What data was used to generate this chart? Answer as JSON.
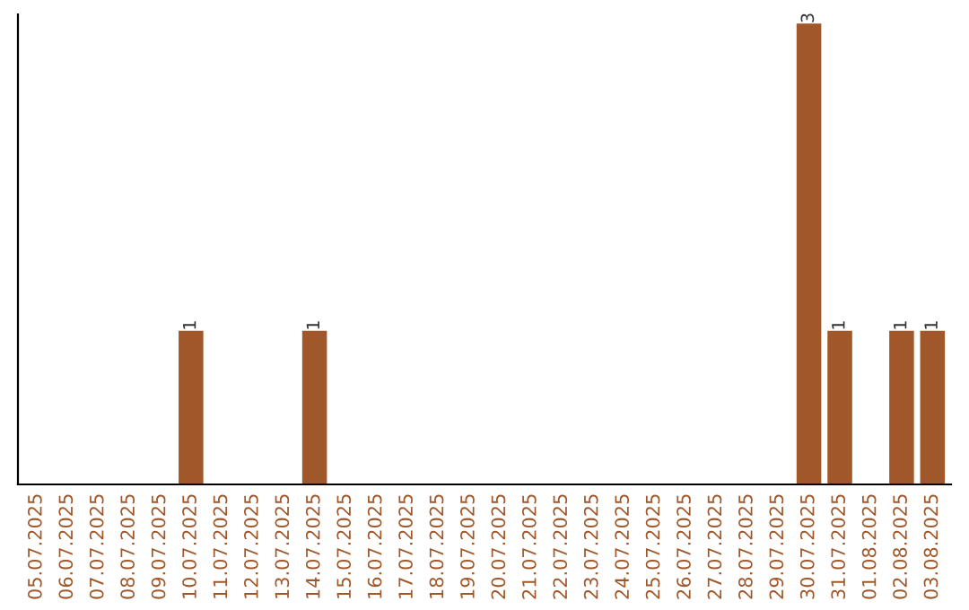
{
  "chart_data": {
    "type": "bar",
    "categories": [
      "05.07.2025",
      "06.07.2025",
      "07.07.2025",
      "08.07.2025",
      "09.07.2025",
      "10.07.2025",
      "11.07.2025",
      "12.07.2025",
      "13.07.2025",
      "14.07.2025",
      "15.07.2025",
      "16.07.2025",
      "17.07.2025",
      "18.07.2025",
      "19.07.2025",
      "20.07.2025",
      "21.07.2025",
      "22.07.2025",
      "23.07.2025",
      "24.07.2025",
      "25.07.2025",
      "26.07.2025",
      "27.07.2025",
      "28.07.2025",
      "29.07.2025",
      "30.07.2025",
      "31.07.2025",
      "01.08.2025",
      "02.08.2025",
      "03.08.2025"
    ],
    "values": [
      0,
      0,
      0,
      0,
      0,
      1,
      0,
      0,
      0,
      1,
      0,
      0,
      0,
      0,
      0,
      0,
      0,
      0,
      0,
      0,
      0,
      0,
      0,
      0,
      0,
      3,
      1,
      0,
      1,
      1
    ],
    "value_labels": [
      null,
      null,
      null,
      null,
      null,
      "1",
      null,
      null,
      null,
      "1",
      null,
      null,
      null,
      null,
      null,
      null,
      null,
      null,
      null,
      null,
      null,
      null,
      null,
      null,
      null,
      "3",
      "1",
      null,
      "1",
      "1"
    ],
    "color": "#a0582a",
    "grid": false,
    "legend": false,
    "tick_labels": "x"
  }
}
